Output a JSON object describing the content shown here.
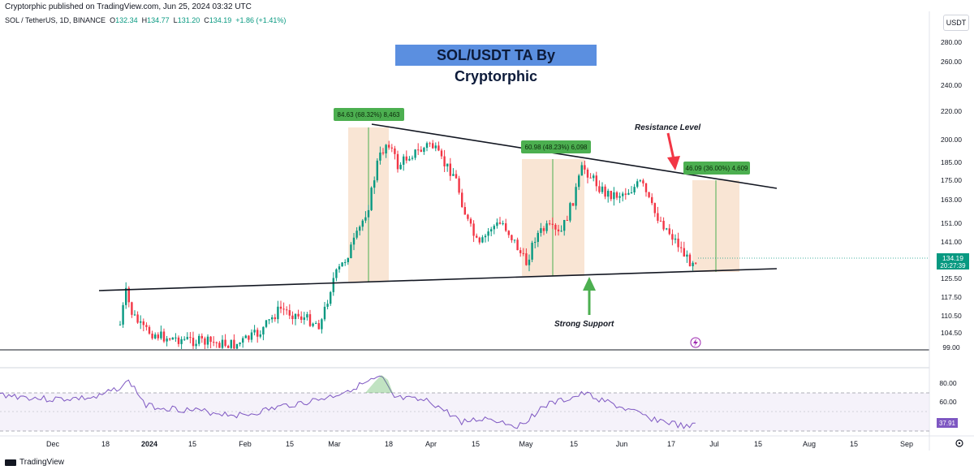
{
  "header": {
    "published": "Cryptorphic published on TradingView.com, Jun 25, 2024 03:32 UTC",
    "symbol": "SOL / TetherUS, 1D, BINANCE",
    "o_label": "O",
    "o_value": "132.34",
    "h_label": "H",
    "h_value": "134.77",
    "l_label": "L",
    "l_value": "131.20",
    "c_label": "C",
    "c_value": "134.19",
    "change": "+1.86 (+1.41%)"
  },
  "currency_button": "USDT",
  "banner_title": "SOL/USDT TA By Cryptorphic",
  "annotations": {
    "resistance": "Resistance Level",
    "support": "Strong Support",
    "measure_1": "84.63 (68.32%) 8,463",
    "measure_2": "60.98 (48.23%) 6,098",
    "measure_3": "46.09 (36.00%) 4,609"
  },
  "price_axis": [
    "280.00",
    "260.00",
    "240.00",
    "220.00",
    "200.00",
    "185.00",
    "175.00",
    "163.00",
    "151.00",
    "141.00",
    "125.50",
    "117.50",
    "110.50",
    "104.50",
    "99.00"
  ],
  "price_label": {
    "price": "134.19",
    "countdown": "20:27:39"
  },
  "rsi_axis": [
    "80.00",
    "60.00",
    "40.00"
  ],
  "rsi_label": "37.91",
  "time_axis": [
    "Dec",
    "18",
    "2024",
    "15",
    "Feb",
    "15",
    "Mar",
    "18",
    "Apr",
    "15",
    "May",
    "15",
    "Jun",
    "17",
    "Jul",
    "15",
    "Aug",
    "15",
    "Sep"
  ],
  "footer": {
    "brand": "TradingView"
  },
  "colors": {
    "up": "#089981",
    "down": "#f23645",
    "rsi": "#7e57c2",
    "range": "#f7dcc6",
    "measure": "#4caf50",
    "banner": "#5b8fe0"
  }
}
